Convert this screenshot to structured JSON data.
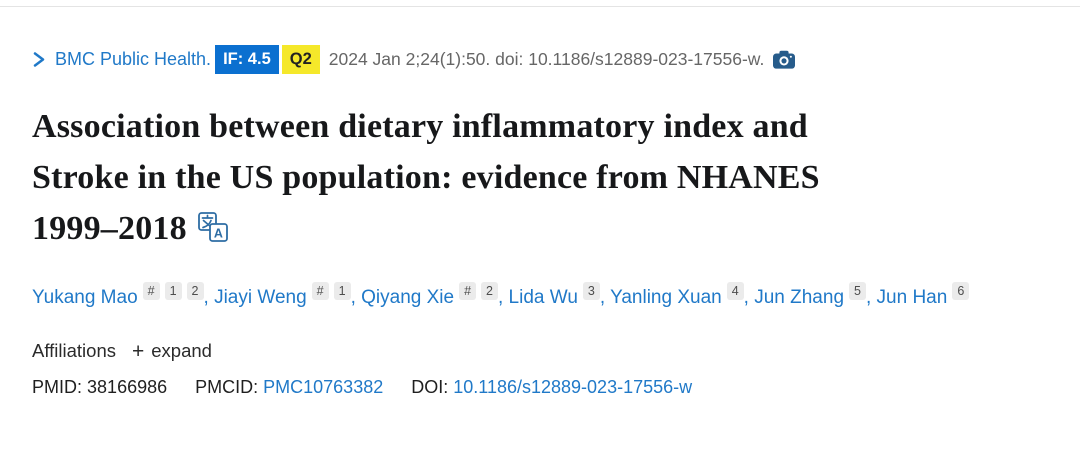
{
  "colors": {
    "link_blue": "#2079c8",
    "if_badge_bg": "#0b70d0",
    "q_badge_bg": "#f5e82a",
    "camera_icon": "#275c8b",
    "translate_icon": "#2e6da4",
    "citation_gray": "#666666",
    "title_black": "#17181a",
    "chip_bg": "#ebebeb"
  },
  "header": {
    "journal": "BMC Public Health.",
    "impact_factor_badge": "IF: 4.5",
    "quartile_badge": "Q2",
    "citation": "2024 Jan 2;24(1):50. doi: 10.1186/s12889-023-17556-w."
  },
  "title": {
    "lines": [
      "Association between dietary inflammatory index and",
      "Stroke in the US population: evidence from NHANES",
      "1999–2018"
    ],
    "full_text": "Association between dietary inflammatory index and Stroke in the US population: evidence from NHANES 1999–2018"
  },
  "authors": [
    {
      "name": "Yukang Mao",
      "sups": [
        "#",
        "1",
        "2"
      ]
    },
    {
      "name": "Jiayi Weng",
      "sups": [
        "#",
        "1"
      ]
    },
    {
      "name": "Qiyang Xie",
      "sups": [
        "#",
        "2"
      ]
    },
    {
      "name": "Lida Wu",
      "sups": [
        "3"
      ]
    },
    {
      "name": "Yanling Xuan",
      "sups": [
        "4"
      ]
    },
    {
      "name": "Jun Zhang",
      "sups": [
        "5"
      ]
    },
    {
      "name": "Jun Han",
      "sups": [
        "6"
      ]
    }
  ],
  "affiliations": {
    "label": "Affiliations",
    "expand_icon": "+",
    "expand_label": "expand"
  },
  "identifiers": {
    "pmid_label": "PMID:",
    "pmid": "38166986",
    "pmcid_label": "PMCID:",
    "pmcid": "PMC10763382",
    "doi_label": "DOI:",
    "doi": "10.1186/s12889-023-17556-w"
  }
}
